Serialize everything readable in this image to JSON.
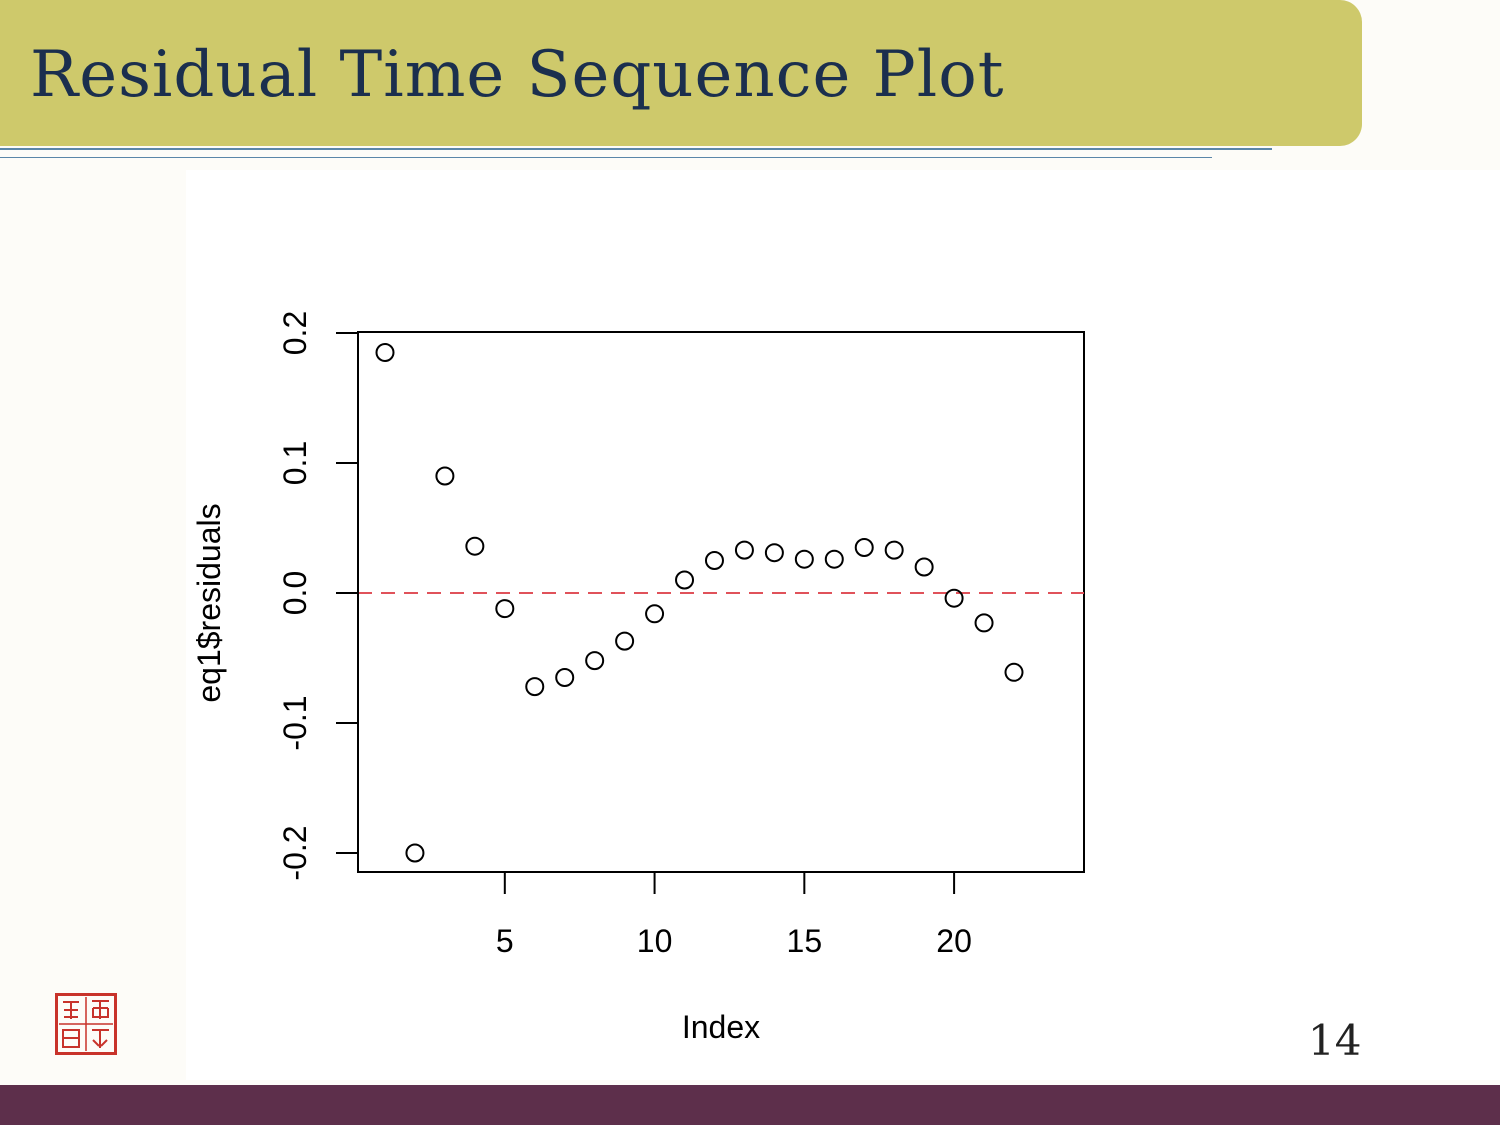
{
  "slide": {
    "title": "Residual Time Sequence Plot",
    "page_number": "14",
    "colors": {
      "title_bar": "#cec96b",
      "title_text": "#1b2f4e",
      "rule": "#5b86a8",
      "footer_bar": "#5d2f4b",
      "seal": "#c8332b"
    },
    "seal_icon": "red-seal-stamp-icon"
  },
  "chart_data": {
    "type": "scatter",
    "title": "",
    "xlabel": "Index",
    "ylabel": "eq1$residuals",
    "xlim": [
      1,
      22
    ],
    "ylim": [
      -0.2,
      0.2
    ],
    "x_ticks": [
      "5",
      "10",
      "15",
      "20"
    ],
    "x_tick_values": [
      5,
      10,
      15,
      20
    ],
    "y_ticks": [
      "-0.2",
      "-0.1",
      "0.0",
      "0.1",
      "0.2"
    ],
    "y_tick_values": [
      -0.2,
      -0.1,
      0.0,
      0.1,
      0.2
    ],
    "x": [
      1,
      2,
      3,
      4,
      5,
      6,
      7,
      8,
      9,
      10,
      11,
      12,
      13,
      14,
      15,
      16,
      17,
      18,
      19,
      20,
      21,
      22
    ],
    "y": [
      0.185,
      -0.2,
      0.09,
      0.036,
      -0.012,
      -0.072,
      -0.065,
      -0.052,
      -0.037,
      -0.016,
      0.01,
      0.025,
      0.033,
      0.031,
      0.026,
      0.026,
      0.035,
      0.033,
      0.02,
      -0.004,
      -0.023,
      -0.061
    ],
    "reference_line": {
      "y": 0.0,
      "style": "dashed",
      "color": "#e0525a"
    },
    "marker": {
      "shape": "open-circle",
      "color": "#000000"
    },
    "grid": false,
    "legend": "none"
  }
}
